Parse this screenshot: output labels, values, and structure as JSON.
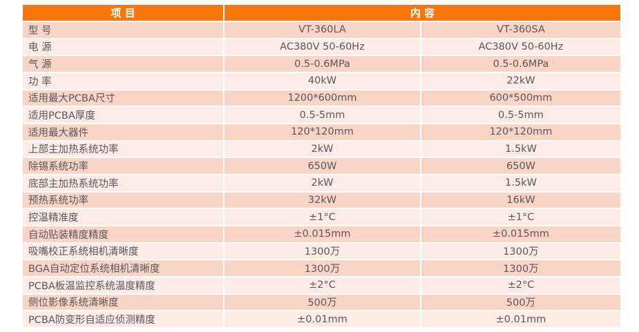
{
  "page": {
    "background": "#ffffff"
  },
  "table": {
    "columns": {
      "item": "项 目",
      "content": "内 容"
    },
    "colors": {
      "header_bg": "#f6780d",
      "header_text": "#ffffff",
      "row_odd_bg": "#fad5c6",
      "row_even_bg": "#fdece6",
      "grid_line": "#ffffff",
      "body_text": "#57565e"
    },
    "rows": [
      {
        "label": "型 号",
        "vt360la": "VT-360LA",
        "vt360sa": "VT-360SA"
      },
      {
        "label": "电 源",
        "vt360la": "AC380V 50-60Hz",
        "vt360sa": "AC380V 50-60Hz"
      },
      {
        "label": "气 源",
        "vt360la": "0.5-0.6MPa",
        "vt360sa": "0.5-0.6MPa"
      },
      {
        "label": "功 率",
        "vt360la": "40kW",
        "vt360sa": "22kW"
      },
      {
        "label": "适用最大PCBA尺寸",
        "vt360la": "1200*600mm",
        "vt360sa": "600*500mm"
      },
      {
        "label": "适用PCBA厚度",
        "vt360la": "0.5-5mm",
        "vt360sa": "0.5-5mm"
      },
      {
        "label": "适用最大器件",
        "vt360la": "120*120mm",
        "vt360sa": "120*120mm"
      },
      {
        "label": "上部主加热系统功率",
        "vt360la": "2kW",
        "vt360sa": "1.5kW"
      },
      {
        "label": "除锡系统功率",
        "vt360la": "650W",
        "vt360sa": "650W"
      },
      {
        "label": "底部主加热系统功率",
        "vt360la": "2kW",
        "vt360sa": "1.5kW"
      },
      {
        "label": "预热系统功率",
        "vt360la": "32kW",
        "vt360sa": "16kW"
      },
      {
        "label": "控温精准度",
        "vt360la": "±1°C",
        "vt360sa": "±1°C"
      },
      {
        "label": "自动贴装精度精度",
        "vt360la": "±0.015mm",
        "vt360sa": "±0.015mm"
      },
      {
        "label": "吸嘴校正系统相机清晰度",
        "vt360la": "1300万",
        "vt360sa": "1300万"
      },
      {
        "label": "BGA自动定位系统相机清晰度",
        "vt360la": "1300万",
        "vt360sa": "1300万"
      },
      {
        "label": "PCBA板温监控系统温度精度",
        "vt360la": "±2°C",
        "vt360sa": "±2°C"
      },
      {
        "label": "侧位影像系统清晰度",
        "vt360la": "500万",
        "vt360sa": "500万"
      },
      {
        "label": "PCBA防变形自适应侦测精度",
        "vt360la": "±0.01mm",
        "vt360sa": "±0.01mm"
      }
    ]
  }
}
